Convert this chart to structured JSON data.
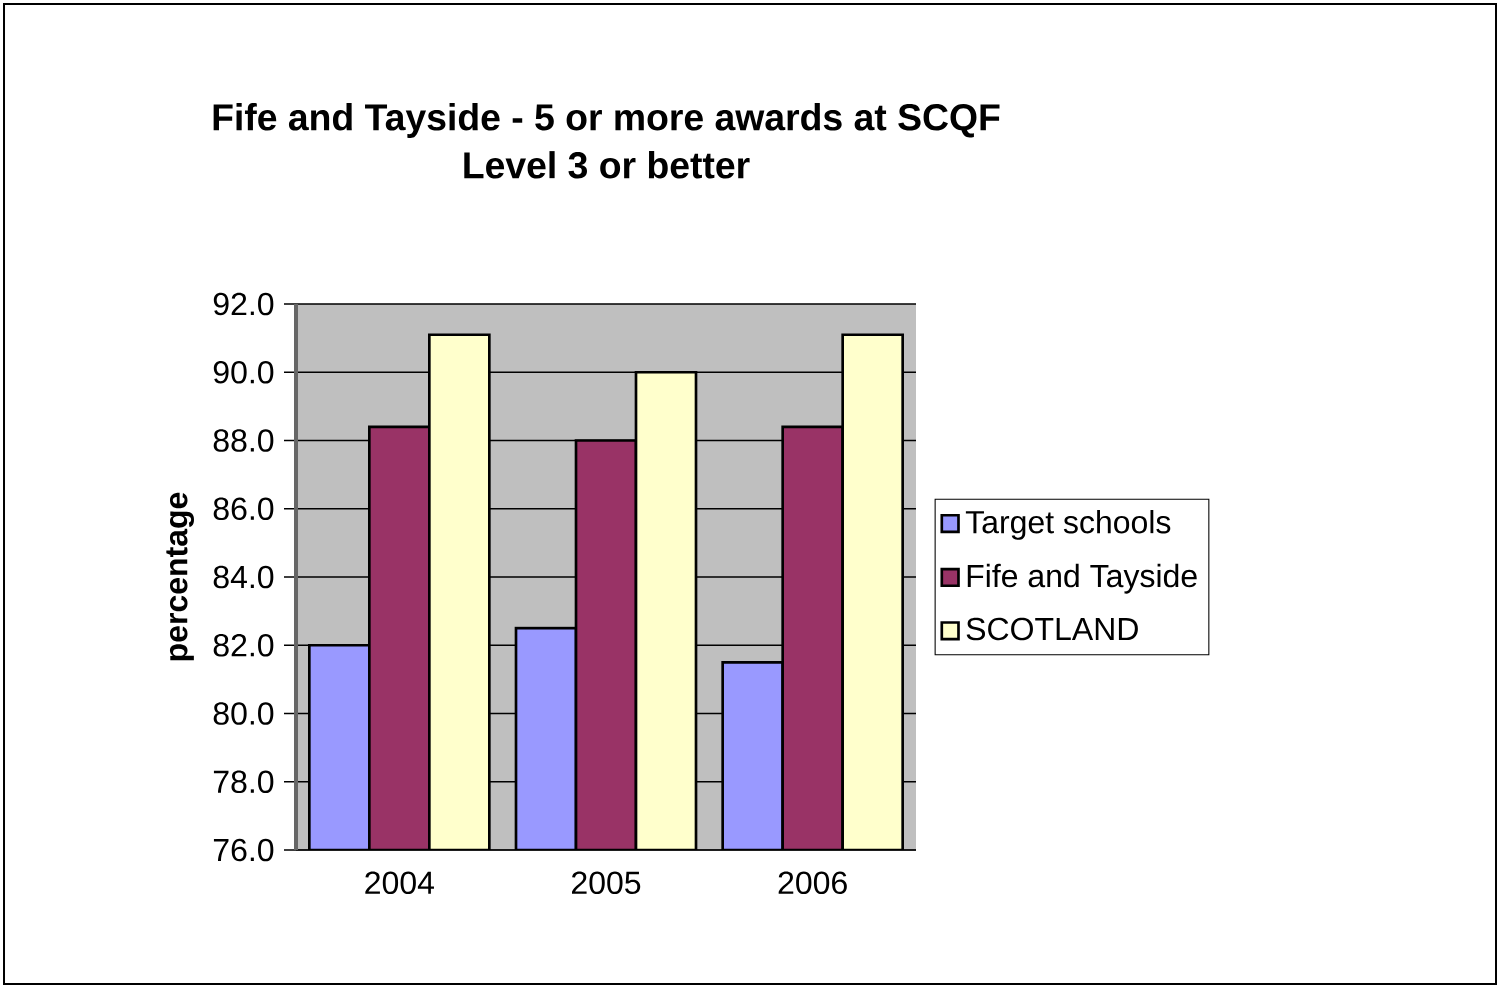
{
  "chart_data": {
    "type": "bar",
    "title": "Fife and Tayside - 5 or more awards at SCQF\nLevel 3 or better",
    "ylabel": "percentage",
    "categories": [
      "2004",
      "2005",
      "2006"
    ],
    "series": [
      {
        "name": "Target schools",
        "color": "#9999ff",
        "values": [
          82.0,
          82.5,
          81.5
        ]
      },
      {
        "name": "Fife and Tayside",
        "color": "#993366",
        "values": [
          88.4,
          88.0,
          88.4
        ]
      },
      {
        "name": "SCOTLAND",
        "color": "#ffffcc",
        "values": [
          91.1,
          90.0,
          91.1
        ]
      }
    ],
    "ylim": [
      76,
      92
    ],
    "yticks": [
      {
        "value": 76,
        "label": "76.0"
      },
      {
        "value": 78,
        "label": "78.0"
      },
      {
        "value": 80,
        "label": "80.0"
      },
      {
        "value": 82,
        "label": "82.0"
      },
      {
        "value": 84,
        "label": "84.0"
      },
      {
        "value": 86,
        "label": "86.0"
      },
      {
        "value": 88,
        "label": "88.0"
      },
      {
        "value": 90,
        "label": "90.0"
      },
      {
        "value": 92,
        "label": "92.0"
      }
    ],
    "grid": "y",
    "legend": "right"
  }
}
